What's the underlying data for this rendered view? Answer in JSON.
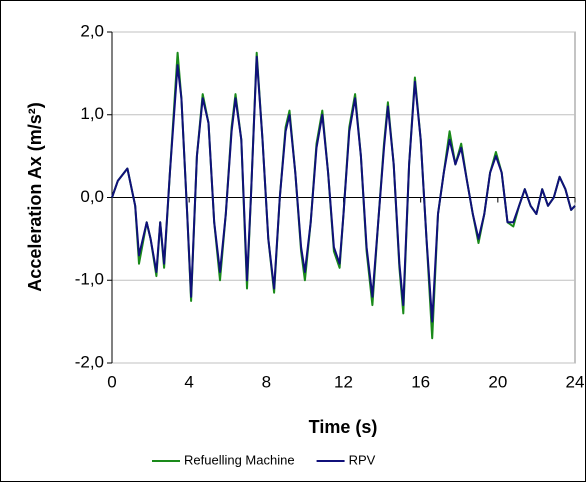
{
  "chart_data": {
    "type": "line",
    "xlabel": "Time (s)",
    "ylabel": "Acceleration Ax (m/s²)",
    "x": [
      0,
      0.3,
      0.8,
      1.2,
      1.4,
      1.8,
      2.0,
      2.3,
      2.5,
      2.7,
      3.0,
      3.4,
      3.6,
      3.9,
      4.1,
      4.4,
      4.7,
      5.0,
      5.3,
      5.6,
      5.9,
      6.2,
      6.4,
      6.7,
      7.0,
      7.2,
      7.5,
      7.8,
      8.1,
      8.4,
      8.7,
      9.0,
      9.2,
      9.5,
      9.8,
      10.0,
      10.3,
      10.6,
      10.9,
      11.2,
      11.5,
      11.8,
      12.0,
      12.3,
      12.6,
      12.9,
      13.2,
      13.5,
      13.8,
      14.1,
      14.3,
      14.6,
      14.9,
      15.1,
      15.4,
      15.7,
      16.0,
      16.3,
      16.6,
      16.9,
      17.2,
      17.5,
      17.8,
      18.1,
      18.4,
      18.7,
      19.0,
      19.3,
      19.6,
      19.9,
      20.2,
      20.5,
      20.8,
      21.1,
      21.4,
      21.7,
      22.0,
      22.3,
      22.6,
      22.9,
      23.2,
      23.5,
      23.8,
      24.0
    ],
    "series": [
      {
        "name": "Refuelling Machine",
        "color": "#1a8a1a",
        "values": [
          0,
          0.2,
          0.35,
          -0.1,
          -0.8,
          -0.3,
          -0.5,
          -0.95,
          -0.3,
          -0.85,
          0.3,
          1.75,
          1.2,
          -0.2,
          -1.25,
          0.5,
          1.25,
          0.9,
          -0.3,
          -1.0,
          -0.2,
          0.85,
          1.25,
          0.7,
          -1.1,
          0,
          1.75,
          0.7,
          -0.5,
          -1.15,
          0,
          0.85,
          1.05,
          0.3,
          -0.65,
          -1.0,
          -0.3,
          0.65,
          1.05,
          0.3,
          -0.65,
          -0.85,
          -0.2,
          0.85,
          1.25,
          0.5,
          -0.65,
          -1.3,
          -0.3,
          0.65,
          1.15,
          0.4,
          -0.85,
          -1.4,
          0.4,
          1.45,
          0.7,
          -0.5,
          -1.7,
          -0.2,
          0.3,
          0.8,
          0.4,
          0.65,
          0.2,
          -0.2,
          -0.55,
          -0.2,
          0.3,
          0.55,
          0.3,
          -0.3,
          -0.35,
          -0.1,
          0.1,
          -0.1,
          -0.2,
          0.1,
          -0.1,
          0,
          0.25,
          0.1,
          -0.15,
          -0.1
        ]
      },
      {
        "name": "RPV",
        "color": "#10107a",
        "values": [
          0,
          0.2,
          0.35,
          -0.1,
          -0.7,
          -0.3,
          -0.5,
          -0.9,
          -0.3,
          -0.8,
          0.3,
          1.6,
          1.2,
          -0.2,
          -1.2,
          0.5,
          1.2,
          0.9,
          -0.3,
          -0.9,
          -0.2,
          0.8,
          1.2,
          0.7,
          -1.0,
          0,
          1.7,
          0.7,
          -0.5,
          -1.1,
          0,
          0.8,
          1.0,
          0.3,
          -0.6,
          -0.9,
          -0.3,
          0.6,
          1.0,
          0.3,
          -0.6,
          -0.8,
          -0.2,
          0.8,
          1.2,
          0.5,
          -0.6,
          -1.2,
          -0.3,
          0.6,
          1.1,
          0.4,
          -0.8,
          -1.3,
          0.4,
          1.4,
          0.7,
          -0.5,
          -1.5,
          -0.2,
          0.3,
          0.7,
          0.4,
          0.6,
          0.2,
          -0.2,
          -0.5,
          -0.2,
          0.3,
          0.5,
          0.3,
          -0.3,
          -0.3,
          -0.1,
          0.1,
          -0.1,
          -0.2,
          0.1,
          -0.1,
          0,
          0.25,
          0.1,
          -0.15,
          -0.1
        ]
      }
    ],
    "xlim": [
      0,
      24
    ],
    "xticks": [
      0,
      4,
      8,
      12,
      16,
      20,
      24
    ],
    "ylim": [
      -2,
      2
    ],
    "yticks": [
      {
        "value": -2,
        "label": "-2,0"
      },
      {
        "value": -1,
        "label": "-1,0"
      },
      {
        "value": 0,
        "label": "0,0"
      },
      {
        "value": 1,
        "label": "1,0"
      },
      {
        "value": 2,
        "label": "2,0"
      }
    ],
    "grid": true,
    "legend": "bottom"
  }
}
